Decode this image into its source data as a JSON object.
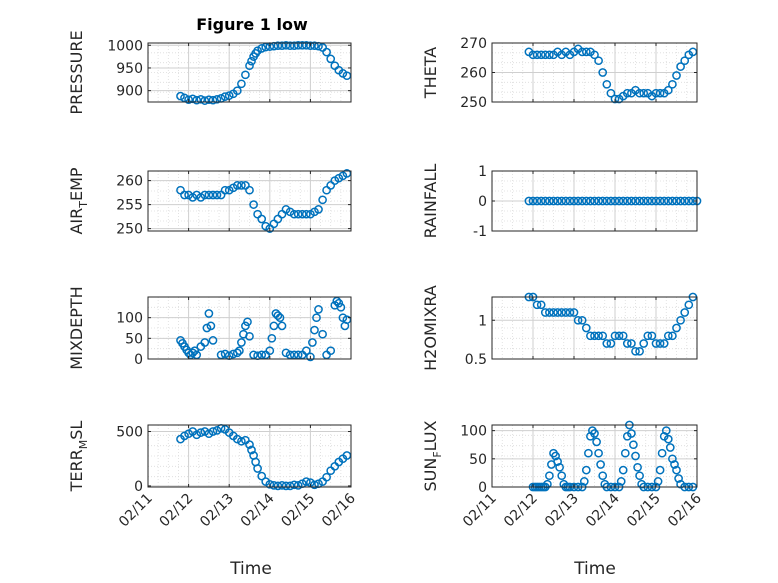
{
  "figure_title": "Figure 1 low",
  "colors": {
    "marker": "#0072BD",
    "axis": "#262626",
    "grid": "#dcdcdc"
  },
  "chart_data": [
    {
      "type": "scatter",
      "title": "Figure 1 low",
      "ylabel": "PRESSURE",
      "ylabel_sub": "",
      "ylim": [
        875,
        1005
      ],
      "yticks": [
        900,
        950,
        1000
      ],
      "ytick_labels": [
        "900",
        "950",
        "1000"
      ],
      "xlim": [
        11,
        16
      ],
      "x": [
        11.8,
        11.9,
        12.0,
        12.1,
        12.2,
        12.3,
        12.4,
        12.5,
        12.6,
        12.7,
        12.8,
        12.9,
        13.0,
        13.1,
        13.2,
        13.3,
        13.4,
        13.5,
        13.55,
        13.6,
        13.65,
        13.7,
        13.8,
        13.9,
        14.0,
        14.1,
        14.2,
        14.3,
        14.4,
        14.5,
        14.6,
        14.7,
        14.8,
        14.9,
        15.0,
        15.1,
        15.2,
        15.3,
        15.4,
        15.5,
        15.6,
        15.7,
        15.8,
        15.9
      ],
      "y": [
        888,
        884,
        880,
        882,
        879,
        881,
        878,
        880,
        879,
        881,
        883,
        887,
        889,
        893,
        900,
        915,
        935,
        955,
        965,
        975,
        982,
        988,
        993,
        996,
        997,
        998,
        999,
        999,
        1000,
        999,
        999,
        1000,
        1000,
        1000,
        999,
        999,
        998,
        995,
        985,
        970,
        955,
        945,
        938,
        933
      ]
    },
    {
      "type": "scatter",
      "title": "",
      "ylabel": "THETA",
      "ylabel_sub": "",
      "ylim": [
        250,
        270
      ],
      "yticks": [
        250,
        260,
        270
      ],
      "ytick_labels": [
        "250",
        "260",
        "270"
      ],
      "xlim": [
        11,
        16
      ],
      "x": [
        11.9,
        12.0,
        12.1,
        12.2,
        12.3,
        12.4,
        12.5,
        12.6,
        12.7,
        12.8,
        12.9,
        13.0,
        13.1,
        13.2,
        13.3,
        13.4,
        13.5,
        13.6,
        13.7,
        13.8,
        13.9,
        14.0,
        14.1,
        14.2,
        14.3,
        14.4,
        14.5,
        14.6,
        14.7,
        14.8,
        14.9,
        15.0,
        15.1,
        15.2,
        15.3,
        15.4,
        15.5,
        15.6,
        15.7,
        15.8,
        15.9
      ],
      "y": [
        267,
        266,
        266,
        266,
        266,
        266,
        266,
        267,
        266,
        267,
        266,
        267,
        268,
        267,
        267,
        267,
        266,
        264,
        260,
        256,
        253,
        251,
        251,
        252,
        253,
        253,
        254,
        253,
        253,
        253,
        252,
        253,
        253,
        253,
        254,
        256,
        259,
        262,
        264,
        266,
        267
      ]
    },
    {
      "type": "scatter",
      "title": "",
      "ylabel": "AIR",
      "ylabel_sub": "T",
      "ylabel_tail": "EMP",
      "ylim": [
        249.5,
        262
      ],
      "yticks": [
        250,
        255,
        260
      ],
      "ytick_labels": [
        "250",
        "255",
        "260"
      ],
      "xlim": [
        11,
        16
      ],
      "x": [
        11.8,
        11.9,
        12.0,
        12.1,
        12.2,
        12.3,
        12.4,
        12.5,
        12.6,
        12.7,
        12.8,
        12.9,
        13.0,
        13.1,
        13.2,
        13.3,
        13.4,
        13.5,
        13.6,
        13.7,
        13.8,
        13.9,
        14.0,
        14.1,
        14.2,
        14.3,
        14.4,
        14.5,
        14.6,
        14.7,
        14.8,
        14.9,
        15.0,
        15.1,
        15.2,
        15.3,
        15.4,
        15.5,
        15.6,
        15.7,
        15.8,
        15.9
      ],
      "y": [
        258,
        257,
        257,
        256.5,
        257,
        256.5,
        257,
        257,
        257,
        257,
        257,
        258,
        258,
        258.5,
        259,
        259,
        259,
        258,
        255,
        253,
        252,
        250.5,
        250,
        251,
        252,
        253,
        254,
        253.5,
        253,
        253,
        253,
        253,
        253,
        253.5,
        254,
        256,
        258,
        259,
        260,
        260.5,
        261,
        261.5
      ]
    },
    {
      "type": "scatter",
      "title": "",
      "ylabel": "RAINFALL",
      "ylabel_sub": "",
      "ylim": [
        -1,
        1
      ],
      "yticks": [
        -1,
        0,
        1
      ],
      "ytick_labels": [
        "-1",
        "0",
        "1"
      ],
      "xlim": [
        11,
        16
      ],
      "x": [
        11.9,
        12.0,
        12.1,
        12.2,
        12.3,
        12.4,
        12.5,
        12.6,
        12.7,
        12.8,
        12.9,
        13.0,
        13.1,
        13.2,
        13.3,
        13.4,
        13.5,
        13.6,
        13.7,
        13.8,
        13.9,
        14.0,
        14.1,
        14.2,
        14.3,
        14.4,
        14.5,
        14.6,
        14.7,
        14.8,
        14.9,
        15.0,
        15.1,
        15.2,
        15.3,
        15.4,
        15.5,
        15.6,
        15.7,
        15.8,
        15.9,
        16.0
      ],
      "y": [
        0,
        0,
        0,
        0,
        0,
        0,
        0,
        0,
        0,
        0,
        0,
        0,
        0,
        0,
        0,
        0,
        0,
        0,
        0,
        0,
        0,
        0,
        0,
        0,
        0,
        0,
        0,
        0,
        0,
        0,
        0,
        0,
        0,
        0,
        0,
        0,
        0,
        0,
        0,
        0,
        0,
        0
      ]
    },
    {
      "type": "scatter",
      "title": "",
      "ylabel": "MIXDEPTH",
      "ylabel_sub": "",
      "ylim": [
        0,
        150
      ],
      "yticks": [
        0,
        50,
        100
      ],
      "ytick_labels": [
        "0",
        "50",
        "100"
      ],
      "xlim": [
        11,
        16
      ],
      "x": [
        11.8,
        11.85,
        11.9,
        11.95,
        12.0,
        12.05,
        12.1,
        12.15,
        12.2,
        12.3,
        12.4,
        12.45,
        12.5,
        12.55,
        12.6,
        12.8,
        12.9,
        13.0,
        13.1,
        13.2,
        13.25,
        13.3,
        13.35,
        13.4,
        13.45,
        13.5,
        13.6,
        13.7,
        13.8,
        13.9,
        14.0,
        14.05,
        14.1,
        14.15,
        14.2,
        14.25,
        14.3,
        14.4,
        14.5,
        14.6,
        14.7,
        14.8,
        14.9,
        15.0,
        15.05,
        15.1,
        15.15,
        15.2,
        15.3,
        15.4,
        15.5,
        15.6,
        15.65,
        15.7,
        15.75,
        15.8,
        15.85,
        15.9
      ],
      "y": [
        45,
        38,
        30,
        22,
        15,
        10,
        15,
        20,
        10,
        30,
        40,
        75,
        110,
        80,
        45,
        10,
        12,
        8,
        12,
        15,
        20,
        40,
        60,
        80,
        90,
        55,
        10,
        8,
        10,
        10,
        20,
        50,
        80,
        110,
        105,
        100,
        80,
        15,
        10,
        10,
        10,
        10,
        20,
        5,
        40,
        70,
        100,
        120,
        60,
        10,
        20,
        130,
        140,
        135,
        125,
        100,
        80,
        95
      ]
    },
    {
      "type": "scatter",
      "title": "",
      "ylabel": "H2OMIXRA",
      "ylabel_sub": "",
      "ylim": [
        0.5,
        1.3
      ],
      "yticks": [
        0.5,
        1
      ],
      "ytick_labels": [
        "0.5",
        "1"
      ],
      "xlim": [
        11,
        16
      ],
      "x": [
        11.9,
        12.0,
        12.1,
        12.2,
        12.3,
        12.4,
        12.5,
        12.6,
        12.7,
        12.8,
        12.9,
        13.0,
        13.1,
        13.2,
        13.3,
        13.4,
        13.5,
        13.6,
        13.7,
        13.8,
        13.9,
        14.0,
        14.1,
        14.2,
        14.3,
        14.4,
        14.5,
        14.6,
        14.7,
        14.8,
        14.9,
        15.0,
        15.1,
        15.2,
        15.3,
        15.4,
        15.5,
        15.6,
        15.7,
        15.8,
        15.9
      ],
      "y": [
        1.3,
        1.3,
        1.2,
        1.2,
        1.1,
        1.1,
        1.1,
        1.1,
        1.1,
        1.1,
        1.1,
        1.1,
        1.0,
        1.0,
        0.9,
        0.8,
        0.8,
        0.8,
        0.8,
        0.7,
        0.7,
        0.8,
        0.8,
        0.8,
        0.7,
        0.7,
        0.6,
        0.6,
        0.7,
        0.8,
        0.8,
        0.7,
        0.7,
        0.7,
        0.8,
        0.8,
        0.9,
        1.0,
        1.1,
        1.2,
        1.3
      ]
    },
    {
      "type": "scatter",
      "title": "",
      "ylabel": "TERR",
      "ylabel_sub": "M",
      "ylabel_tail": "SL",
      "ylim": [
        -10,
        560
      ],
      "yticks": [
        0,
        500
      ],
      "ytick_labels": [
        "0",
        "500"
      ],
      "xlim": [
        11,
        16
      ],
      "x": [
        11.8,
        11.9,
        12.0,
        12.1,
        12.2,
        12.3,
        12.4,
        12.5,
        12.6,
        12.7,
        12.8,
        12.9,
        13.0,
        13.1,
        13.2,
        13.3,
        13.4,
        13.5,
        13.55,
        13.6,
        13.65,
        13.7,
        13.8,
        13.9,
        14.0,
        14.1,
        14.2,
        14.3,
        14.4,
        14.5,
        14.6,
        14.7,
        14.8,
        14.9,
        15.0,
        15.1,
        15.2,
        15.3,
        15.4,
        15.5,
        15.6,
        15.7,
        15.8,
        15.9
      ],
      "y": [
        430,
        460,
        480,
        500,
        470,
        490,
        500,
        480,
        500,
        510,
        530,
        520,
        490,
        460,
        430,
        410,
        420,
        380,
        330,
        280,
        220,
        160,
        90,
        40,
        15,
        5,
        0,
        5,
        0,
        0,
        10,
        5,
        20,
        40,
        30,
        10,
        20,
        40,
        80,
        140,
        180,
        220,
        250,
        280
      ]
    },
    {
      "type": "scatter",
      "title": "",
      "ylabel": "SUN",
      "ylabel_sub": "F",
      "ylabel_tail": "LUX",
      "ylim": [
        0,
        110
      ],
      "yticks": [
        0,
        50,
        100
      ],
      "ytick_labels": [
        "0",
        "50",
        "100"
      ],
      "xlim": [
        11,
        16
      ],
      "x": [
        12.0,
        12.05,
        12.1,
        12.15,
        12.2,
        12.25,
        12.3,
        12.35,
        12.4,
        12.45,
        12.5,
        12.55,
        12.6,
        12.65,
        12.7,
        12.75,
        12.8,
        12.85,
        12.9,
        13.0,
        13.1,
        13.2,
        13.25,
        13.3,
        13.35,
        13.4,
        13.45,
        13.5,
        13.55,
        13.6,
        13.65,
        13.7,
        13.75,
        13.8,
        13.9,
        14.0,
        14.1,
        14.15,
        14.2,
        14.25,
        14.3,
        14.35,
        14.4,
        14.45,
        14.5,
        14.55,
        14.6,
        14.65,
        14.7,
        14.8,
        14.9,
        15.0,
        15.05,
        15.1,
        15.15,
        15.2,
        15.25,
        15.3,
        15.35,
        15.4,
        15.45,
        15.5,
        15.55,
        15.6,
        15.7,
        15.8,
        15.9
      ],
      "y": [
        0,
        0,
        0,
        0,
        0,
        0,
        0,
        5,
        20,
        40,
        60,
        55,
        45,
        35,
        20,
        5,
        0,
        0,
        0,
        0,
        0,
        0,
        10,
        30,
        60,
        90,
        100,
        95,
        80,
        60,
        40,
        20,
        5,
        0,
        0,
        0,
        0,
        10,
        30,
        60,
        90,
        110,
        95,
        75,
        55,
        35,
        20,
        5,
        0,
        0,
        0,
        0,
        10,
        30,
        60,
        90,
        100,
        85,
        70,
        50,
        40,
        30,
        15,
        5,
        0,
        0,
        0
      ]
    }
  ],
  "x_tick_labels": [
    "02/11",
    "02/12",
    "02/13",
    "02/14",
    "02/15",
    "02/16"
  ],
  "x_label": "Time"
}
